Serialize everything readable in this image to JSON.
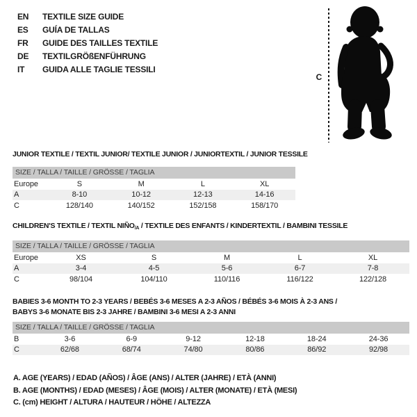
{
  "languages": [
    {
      "code": "EN",
      "title": "TEXTILE SIZE GUIDE"
    },
    {
      "code": "ES",
      "title": "GUÍA DE TALLAS"
    },
    {
      "code": "FR",
      "title": "GUIDE DES TAILLES TEXTILE"
    },
    {
      "code": "DE",
      "title": "TEXTILGRÖßENFÜHRUNG"
    },
    {
      "code": "IT",
      "title": "GUIDA ALLE TAGLIE TESSILI"
    }
  ],
  "figure": {
    "label": "C",
    "description": "toddler silhouette with dashed height measurement line"
  },
  "size_header": "SIZE / TALLA / TAILLE / GRÖSSE / TAGLIA",
  "tables": [
    {
      "title": "JUNIOR TEXTILE / TEXTIL JUNIOR/ TEXTILE JUNIOR / JUNIORTEXTIL / JUNIOR TESSILE",
      "rows": [
        [
          "Europe",
          "S",
          "M",
          "L",
          "XL"
        ],
        [
          "A",
          "8-10",
          "10-12",
          "12-13",
          "14-16"
        ],
        [
          "C",
          "128/140",
          "140/152",
          "152/158",
          "158/170"
        ]
      ],
      "shaded_rows": [
        1
      ]
    },
    {
      "title_prefix": "CHILDREN'S TEXTILE / TEXTIL NIÑO",
      "title_sub": "/A",
      "title_suffix": " / TEXTILE DES ENFANTS / KINDERTEXTIL / BAMBINI TESSILE",
      "rows": [
        [
          "Europe",
          "XS",
          "S",
          "M",
          "L",
          "XL"
        ],
        [
          "A",
          "3-4",
          "4-5",
          "5-6",
          "6-7",
          "7-8"
        ],
        [
          "C",
          "98/104",
          "104/110",
          "110/116",
          "116/122",
          "122/128"
        ]
      ],
      "shaded_rows": [
        1
      ]
    },
    {
      "title_line1": "BABIES 3-6 MONTH TO 2-3 YEARS / BEBÉS 3-6 MESES A 2-3 AÑOS / BÉBÉS 3-6 MOIS À 2-3 ANS /",
      "title_line2": "BABYS 3-6 MONATE BIS 2-3 JAHRE / BAMBINI 3-6 MESI A 2-3 ANNI",
      "rows": [
        [
          "B",
          "3-6",
          "6-9",
          "9-12",
          "12-18",
          "18-24",
          "24-36"
        ],
        [
          "C",
          "62/68",
          "68/74",
          "74/80",
          "80/86",
          "86/92",
          "92/98"
        ]
      ],
      "shaded_rows": [
        1
      ]
    }
  ],
  "notes": [
    "A. AGE (YEARS) / EDAD (AÑOS) / ÂGE (ANS) / ALTER (JAHRE) / ETÀ (ANNI)",
    "B. AGE (MONTHS) / EDAD (MESES) / ÂGE (MOIS) / ALTER (MONATE) / ETÀ (MESI)",
    "C. (cm) HEIGHT / ALTURA / HAUTEUR / HÖHE / ALTEZZA"
  ],
  "colors": {
    "header_band": "#c9c9c9",
    "row_shade": "#efefef",
    "silhouette": "#0b0b0b"
  }
}
